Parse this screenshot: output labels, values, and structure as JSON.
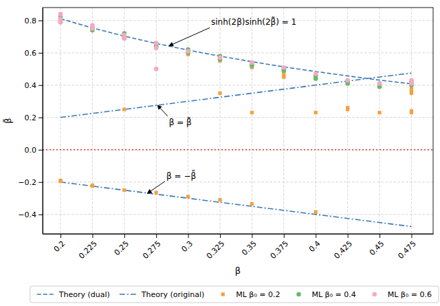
{
  "chart_data": {
    "type": "line",
    "x_label": "β",
    "y_label": "β̃",
    "xlim": [
      0.186,
      0.492
    ],
    "ylim": [
      -0.52,
      0.88
    ],
    "xticks": [
      0.2,
      0.225,
      0.25,
      0.275,
      0.3,
      0.325,
      0.35,
      0.375,
      0.4,
      0.425,
      0.45,
      0.475
    ],
    "yticks": [
      {
        "value": -0.4,
        "label": "−0.4"
      },
      {
        "value": -0.2,
        "label": "−0.2"
      },
      {
        "value": 0,
        "label": "0.0"
      },
      0.2,
      0.4,
      0.6,
      0.8
    ],
    "grid": true,
    "legend": "bottom",
    "series": [
      {
        "name": "Theory (dual)",
        "type": "line",
        "color": "#3a78b5",
        "line_style": "dashed",
        "x": [
          0.2,
          0.225,
          0.25,
          0.275,
          0.3,
          0.325,
          0.35,
          0.375,
          0.4,
          0.425,
          0.45,
          0.475
        ],
        "values": [
          0.811,
          0.754,
          0.703,
          0.658,
          0.617,
          0.579,
          0.545,
          0.513,
          0.484,
          0.457,
          0.431,
          0.408
        ]
      },
      {
        "name": "Theory (original)",
        "type": "line",
        "color": "#3a78b5",
        "line_style": "dashdot",
        "x": [
          0.2,
          0.475,
          null,
          0.2,
          0.475
        ],
        "values": [
          0.2,
          0.475,
          null,
          -0.2,
          -0.475
        ]
      },
      {
        "name": "ML β₀ = 0.2",
        "type": "scatter",
        "color": "#f5a042",
        "marker": "square",
        "x": [
          0.2,
          0.2,
          0.2,
          0.2,
          0.225,
          0.225,
          0.225,
          0.225,
          0.25,
          0.25,
          0.25,
          0.25,
          0.275,
          0.275,
          0.275,
          0.3,
          0.3,
          0.3,
          0.325,
          0.325,
          0.325,
          0.325,
          0.35,
          0.35,
          0.35,
          0.35,
          0.375,
          0.375,
          0.375,
          0.4,
          0.4,
          0.4,
          0.4,
          0.425,
          0.425,
          0.425,
          0.425,
          0.45,
          0.45,
          0.45,
          0.475,
          0.475,
          0.475,
          0.475,
          0.475
        ],
        "values": [
          0.8,
          0.79,
          -0.195,
          -0.19,
          0.75,
          0.74,
          -0.225,
          -0.22,
          0.7,
          0.69,
          -0.25,
          0.25,
          0.64,
          0.63,
          -0.265,
          0.6,
          0.59,
          -0.29,
          0.56,
          0.55,
          0.35,
          -0.31,
          0.52,
          0.51,
          0.23,
          -0.335,
          0.48,
          0.46,
          0.45,
          0.46,
          0.44,
          0.23,
          -0.385,
          0.43,
          0.41,
          0.26,
          0.25,
          0.41,
          0.4,
          0.23,
          0.38,
          0.36,
          0.35,
          0.24,
          0.23
        ]
      },
      {
        "name": "ML β₀ = 0.4",
        "type": "scatter",
        "color": "#66bb6a",
        "marker": "circle",
        "x": [
          0.2,
          0.2,
          0.2,
          0.225,
          0.225,
          0.25,
          0.25,
          0.25,
          0.275,
          0.275,
          0.3,
          0.3,
          0.325,
          0.325,
          0.35,
          0.35,
          0.375,
          0.375,
          0.4,
          0.4,
          0.425,
          0.425,
          0.45,
          0.45,
          0.475,
          0.475
        ],
        "values": [
          0.82,
          0.8,
          0.79,
          0.76,
          0.74,
          0.72,
          0.7,
          0.69,
          0.66,
          0.64,
          0.62,
          0.6,
          0.58,
          0.56,
          0.53,
          0.52,
          0.5,
          0.49,
          0.46,
          0.44,
          0.42,
          0.41,
          0.41,
          0.39,
          0.42,
          0.4
        ]
      },
      {
        "name": "ML β₀ = 0.6",
        "type": "scatter",
        "color": "#f7a8c4",
        "marker": "circle",
        "x": [
          0.2,
          0.2,
          0.2,
          0.225,
          0.225,
          0.25,
          0.25,
          0.275,
          0.275,
          0.275,
          0.3,
          0.325,
          0.35,
          0.375,
          0.4,
          0.425,
          0.45,
          0.475,
          0.475
        ],
        "values": [
          0.84,
          0.81,
          0.79,
          0.77,
          0.75,
          0.71,
          0.69,
          0.66,
          0.63,
          0.5,
          0.61,
          0.57,
          0.54,
          0.51,
          0.47,
          0.43,
          0.41,
          0.43,
          0.41
        ]
      }
    ],
    "reference_lines": [
      {
        "y": 0,
        "color": "#e8312f",
        "line_style": "dotted"
      }
    ],
    "annotations": [
      {
        "text": "sinh(2β)sinh(2β̃) = 1",
        "xy": [
          0.285,
          0.643
        ],
        "xytext": [
          0.318,
          0.79
        ]
      },
      {
        "text": "β = β̃",
        "xy": [
          0.276,
          0.276
        ],
        "xytext": [
          0.285,
          0.17
        ]
      },
      {
        "text": "β = −β̃",
        "xy": [
          0.268,
          -0.27
        ],
        "xytext": [
          0.283,
          -0.16
        ]
      }
    ]
  }
}
